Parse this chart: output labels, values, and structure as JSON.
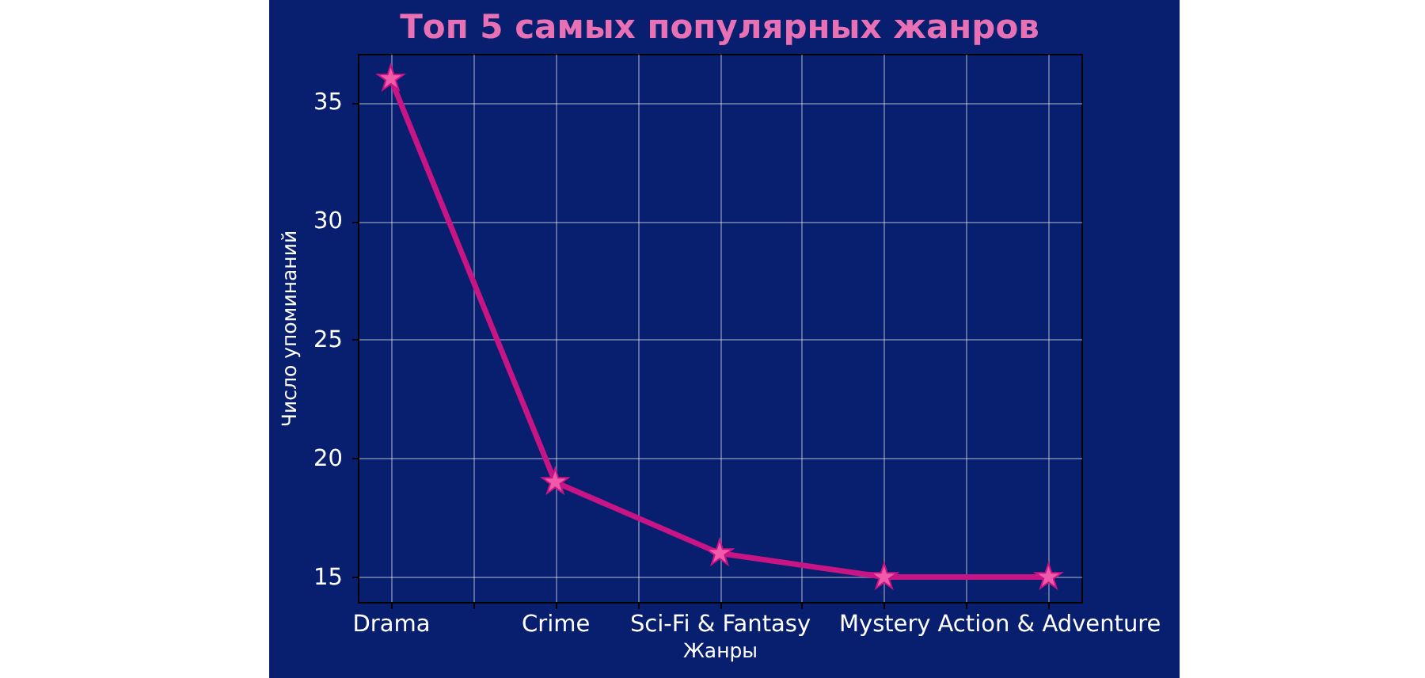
{
  "chart_data": {
    "type": "line",
    "title": "Топ 5 самых популярных жанров",
    "xlabel": "Жанры",
    "ylabel": "Число упоминаний",
    "categories": [
      "Drama",
      "Crime",
      "Sci-Fi & Fantasy",
      "Mystery",
      "Action & Adventure"
    ],
    "series": [
      {
        "color": "#c71585",
        "values": [
          36,
          19,
          16,
          15,
          15
        ]
      }
    ],
    "ylim": [
      13.95,
      37.05
    ],
    "yticks": [
      15,
      20,
      25,
      30,
      35
    ],
    "grid": true,
    "marker": "star",
    "line_style": "solid"
  }
}
